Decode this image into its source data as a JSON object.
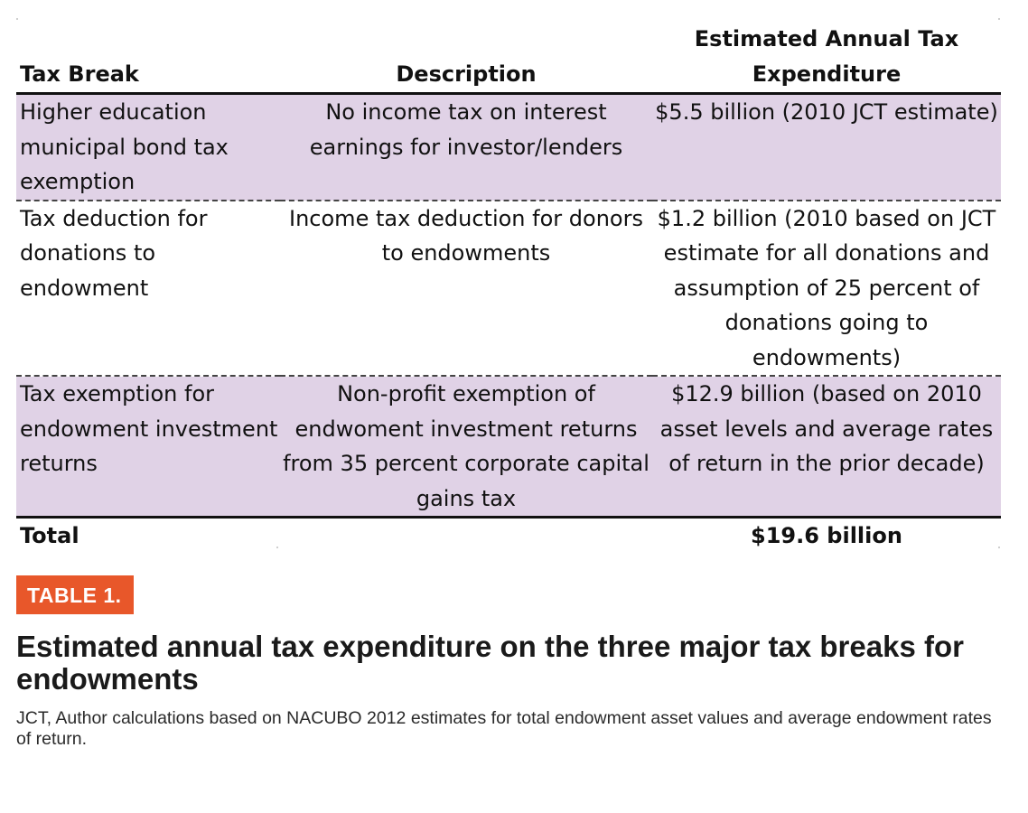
{
  "table": {
    "headers": {
      "col1": "Tax Break",
      "col2": "Description",
      "col3_line1": "Estimated Annual Tax",
      "col3_line2": "Expenditure"
    },
    "rows": [
      {
        "tax_break": "Higher education municipal bond tax exemption",
        "description": "No income tax on interest earnings for investor/lenders",
        "expenditure": "$5.5 billion (2010 JCT estimate)"
      },
      {
        "tax_break": "Tax deduction for donations to endowment",
        "description": "Income tax deduction for donors to endowments",
        "expenditure": "$1.2 billion (2010 based on JCT estimate for all donations and assumption of 25 percent of donations going to endowments)"
      },
      {
        "tax_break": "Tax exemption for endowment investment returns",
        "description": "Non-profit exemption of endwoment investment returns from 35 percent corporate capital gains tax",
        "expenditure": "$12.9 billion (based on 2010 asset levels and average rates of return in the prior decade)"
      }
    ],
    "total": {
      "label": "Total",
      "value": "$19.6 billion"
    }
  },
  "caption": {
    "label": "TABLE 1.",
    "title": "Estimated annual tax expenditure on the three major tax breaks for endowments",
    "source": "JCT, Author calculations based on NACUBO 2012 estimates for total endowment asset values and average endowment rates of return."
  },
  "colors": {
    "row_fill": "#e0d2e6",
    "label_bg": "#e8572a",
    "rule": "#111111"
  }
}
